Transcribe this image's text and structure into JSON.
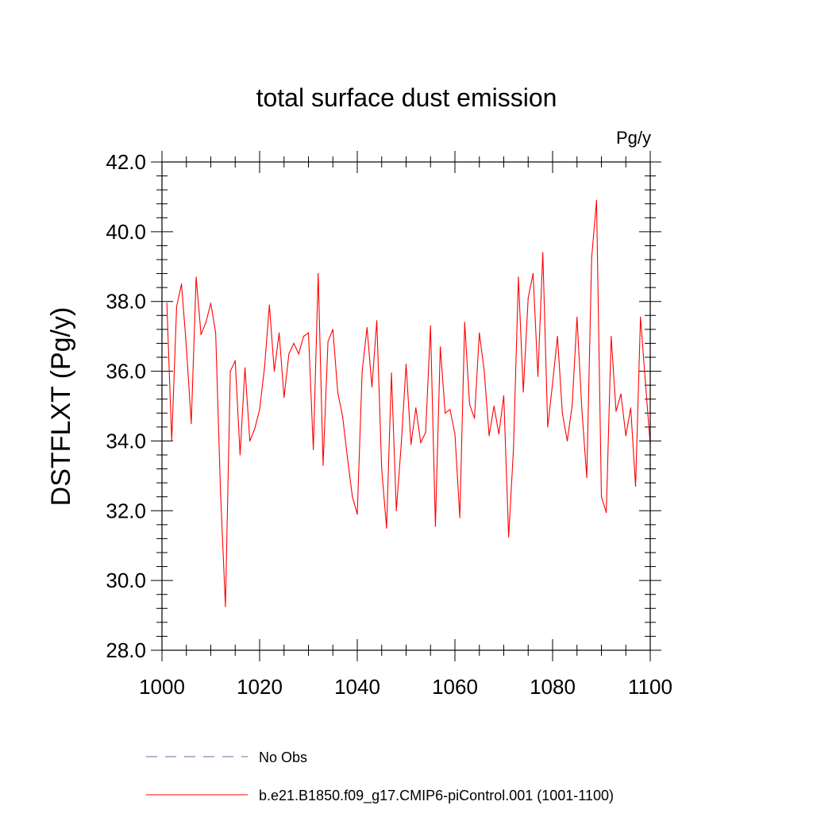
{
  "chart_data": {
    "type": "line",
    "title": "total surface dust emission",
    "units_label": "Pg/y",
    "ylabel": "DSTFLXT  (Pg/y)",
    "xlabel": "",
    "xlim": [
      1000,
      1100
    ],
    "ylim": [
      28.0,
      42.0
    ],
    "x_ticks": [
      1000,
      1020,
      1040,
      1060,
      1080,
      1100
    ],
    "x_tick_labels": [
      "1000",
      "1020",
      "1040",
      "1060",
      "1080",
      "1100"
    ],
    "y_ticks": [
      28.0,
      30.0,
      32.0,
      34.0,
      36.0,
      38.0,
      40.0,
      42.0
    ],
    "y_tick_labels": [
      "28.0",
      "30.0",
      "32.0",
      "34.0",
      "36.0",
      "38.0",
      "40.0",
      "42.0"
    ],
    "grid": false,
    "legend_position": "bottom",
    "series": [
      {
        "name": "No Obs",
        "color": "#6a6aaa",
        "dash": "dashed",
        "x": [],
        "values": []
      },
      {
        "name": "b.e21.B1850.f09_g17.CMIP6-piControl.001 (1001-1100)",
        "color": "#ff0000",
        "dash": "solid",
        "x": [
          1001,
          1002,
          1003,
          1004,
          1005,
          1006,
          1007,
          1008,
          1009,
          1010,
          1011,
          1012,
          1013,
          1014,
          1015,
          1016,
          1017,
          1018,
          1019,
          1020,
          1021,
          1022,
          1023,
          1024,
          1025,
          1026,
          1027,
          1028,
          1029,
          1030,
          1031,
          1032,
          1033,
          1034,
          1035,
          1036,
          1037,
          1038,
          1039,
          1040,
          1041,
          1042,
          1043,
          1044,
          1045,
          1046,
          1047,
          1048,
          1049,
          1050,
          1051,
          1052,
          1053,
          1054,
          1055,
          1056,
          1057,
          1058,
          1059,
          1060,
          1061,
          1062,
          1063,
          1064,
          1065,
          1066,
          1067,
          1068,
          1069,
          1070,
          1071,
          1072,
          1073,
          1074,
          1075,
          1076,
          1077,
          1078,
          1079,
          1080,
          1081,
          1082,
          1083,
          1084,
          1085,
          1086,
          1087,
          1088,
          1089,
          1090,
          1091,
          1092,
          1093,
          1094,
          1095,
          1096,
          1097,
          1098,
          1099,
          1100
        ],
        "values": [
          37.95,
          34.0,
          37.85,
          38.5,
          36.7,
          34.5,
          38.7,
          37.05,
          37.4,
          37.95,
          37.1,
          32.5,
          29.25,
          36.0,
          36.3,
          33.6,
          36.1,
          34.0,
          34.35,
          34.9,
          36.1,
          37.9,
          36.0,
          37.1,
          35.25,
          36.5,
          36.8,
          36.5,
          37.0,
          37.1,
          33.75,
          38.8,
          33.3,
          36.85,
          37.2,
          35.4,
          34.7,
          33.5,
          32.4,
          31.9,
          36.0,
          37.25,
          35.55,
          37.45,
          33.2,
          31.5,
          35.95,
          32.0,
          33.9,
          36.2,
          33.9,
          34.95,
          33.95,
          34.25,
          37.3,
          31.55,
          36.7,
          34.8,
          34.9,
          34.2,
          31.8,
          37.4,
          35.05,
          34.65,
          37.1,
          36.0,
          34.15,
          35.0,
          34.2,
          35.3,
          31.25,
          33.8,
          38.7,
          35.4,
          38.1,
          38.8,
          35.85,
          39.4,
          34.4,
          35.65,
          37.0,
          34.8,
          34.0,
          35.0,
          37.55,
          34.9,
          32.95,
          39.25,
          40.9,
          32.4,
          31.95,
          37.0,
          34.85,
          35.35,
          34.15,
          34.95,
          32.7,
          37.55,
          35.7,
          33.9
        ]
      }
    ]
  }
}
